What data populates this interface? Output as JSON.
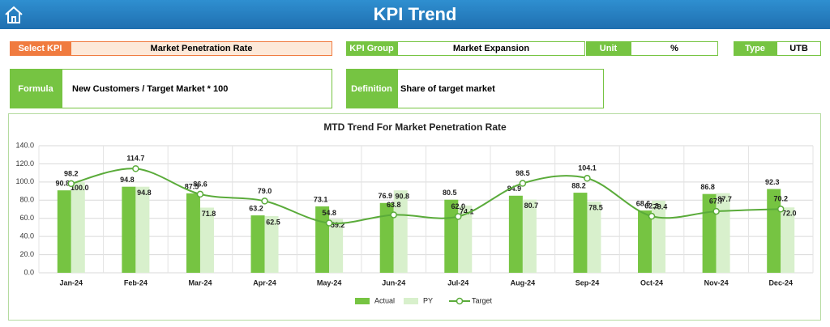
{
  "header": {
    "title": "KPI Trend"
  },
  "fields": {
    "select_kpi": {
      "label": "Select KPI",
      "value": "Market Penetration Rate"
    },
    "kpi_group": {
      "label": "KPI Group",
      "value": "Market Expansion"
    },
    "unit": {
      "label": "Unit",
      "value": "%"
    },
    "type": {
      "label": "Type",
      "value": "UTB"
    },
    "formula": {
      "label": "Formula",
      "value": "New Customers / Target Market * 100"
    },
    "definition": {
      "label": "Definition",
      "value": "Share of target market"
    }
  },
  "chart_data": {
    "type": "bar",
    "title": "MTD Trend For Market Penetration Rate",
    "categories": [
      "Jan-24",
      "Feb-24",
      "Mar-24",
      "Apr-24",
      "May-24",
      "Jun-24",
      "Jul-24",
      "Aug-24",
      "Sep-24",
      "Oct-24",
      "Nov-24",
      "Dec-24"
    ],
    "series": [
      {
        "name": "Actual",
        "type": "bar",
        "color": "#76c442",
        "values": [
          90.8,
          94.8,
          87.5,
          63.2,
          73.1,
          76.9,
          80.5,
          84.9,
          88.2,
          68.6,
          86.8,
          92.3
        ],
        "value_labels": [
          "90.8",
          "94.8",
          "87.5",
          "63.2",
          "73.1",
          "76.9",
          "80.5",
          "84.9",
          "88.2",
          "68.6",
          "86.8",
          "92.3"
        ]
      },
      {
        "name": "PY",
        "type": "bar",
        "color": "#d8f0cc",
        "values": [
          100,
          94.8,
          71.8,
          62.5,
          59.2,
          90.8,
          74.1,
          80.7,
          78.5,
          79.4,
          87.7,
          72
        ],
        "value_labels": [
          "100.0",
          "94.8",
          "71.8",
          "62.5",
          "59.2",
          "90.8",
          "74.1",
          "80.7",
          "78.5",
          "79.4",
          "87.7",
          "72.0"
        ]
      },
      {
        "name": "Target",
        "type": "line",
        "color": "#5aab3a",
        "values": [
          98.2,
          114.7,
          86.6,
          79,
          54.8,
          63.8,
          62,
          98.5,
          104.1,
          62.3,
          67.7,
          70.2
        ],
        "value_labels": [
          "98.2",
          "114.7",
          "86.6",
          "79.0",
          "54.8",
          "63.8",
          "62.0",
          "98.5",
          "104.1",
          "62.3",
          "67.7",
          "70.2"
        ]
      }
    ],
    "ylim": [
      0,
      140
    ],
    "yticks": [
      {
        "value": 0,
        "label": "0.0"
      },
      {
        "value": 20,
        "label": "20.0"
      },
      {
        "value": 40,
        "label": "40.0"
      },
      {
        "value": 60,
        "label": "60.0"
      },
      {
        "value": 80,
        "label": "80.0"
      },
      {
        "value": 100,
        "label": "100.0"
      },
      {
        "value": 120,
        "label": "120.0"
      },
      {
        "value": 140,
        "label": "140.0"
      }
    ],
    "grid": true,
    "legend": "bottom"
  }
}
